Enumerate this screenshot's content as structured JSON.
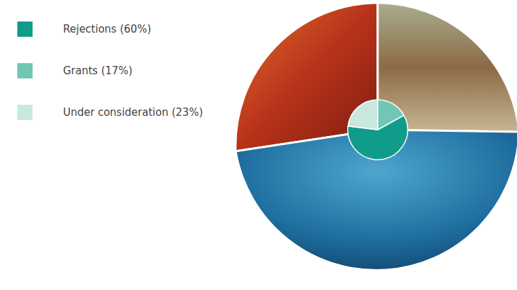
{
  "chart_data": {
    "type": "pie",
    "categories": [
      "Rejections (60%)",
      "Grants (17%)",
      "Under consideration (23%)"
    ],
    "values": [
      60,
      17,
      23
    ],
    "colors": [
      "#109c8b",
      "#72c6b4",
      "#c8e8df"
    ],
    "legend": "left"
  }
}
